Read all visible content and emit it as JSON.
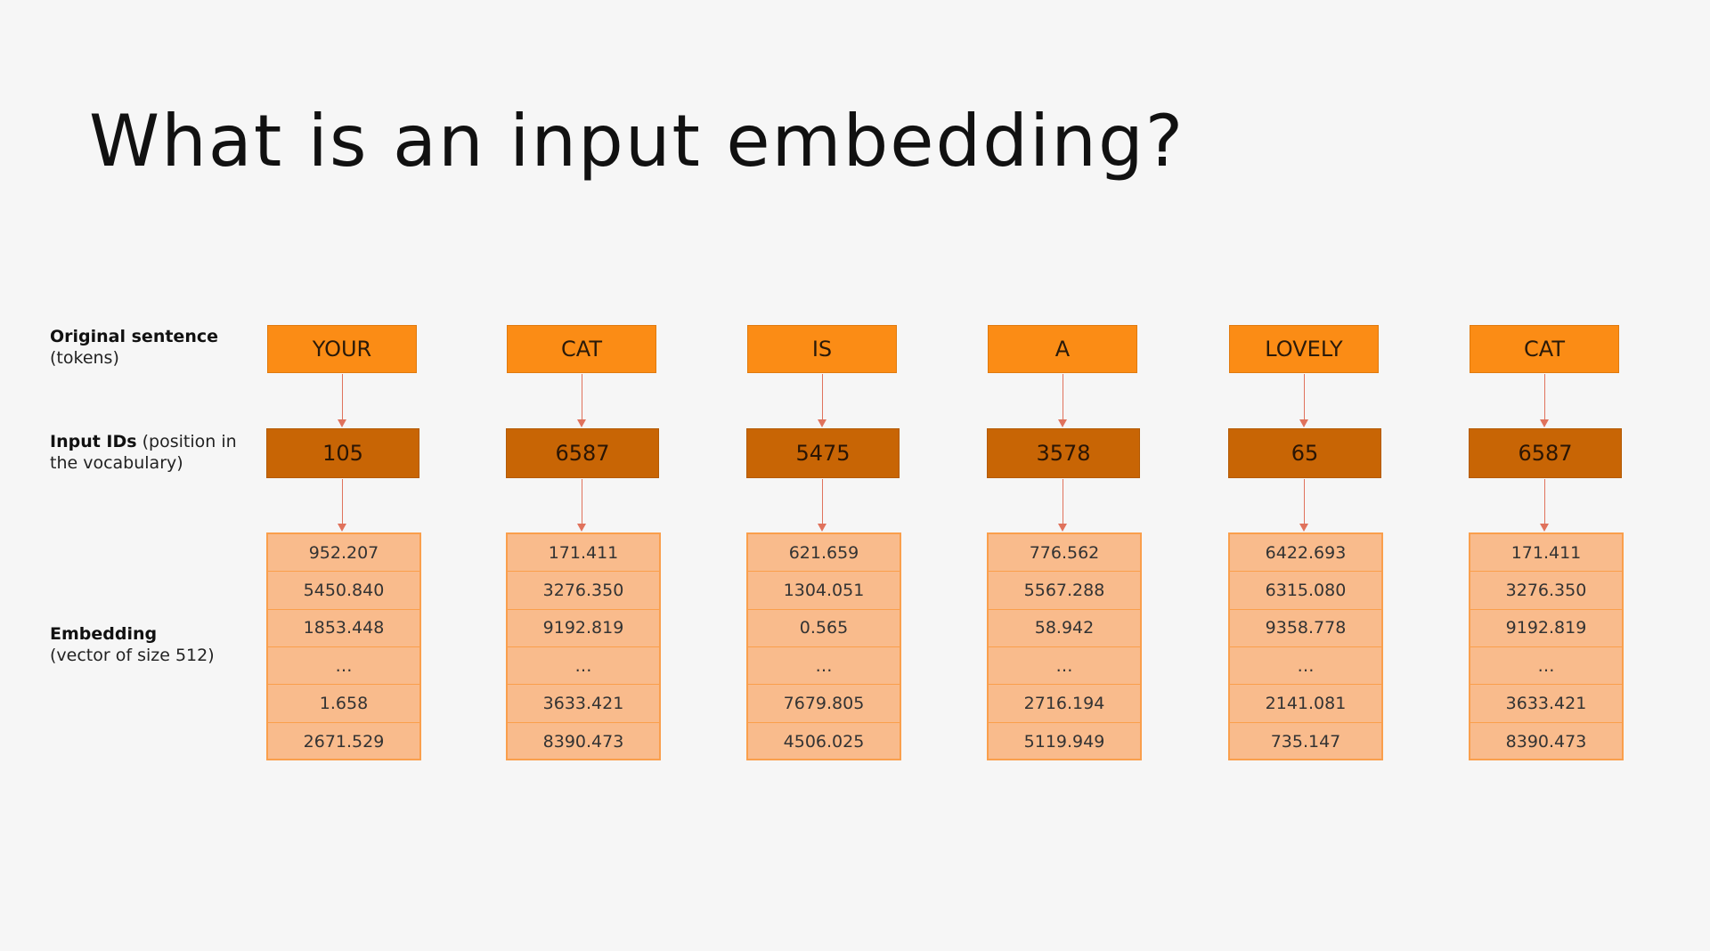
{
  "title": "What is an input embedding?",
  "labels": {
    "tokens": {
      "bold": "Original sentence",
      "sub": "(tokens)"
    },
    "ids": {
      "bold": "Input IDs",
      "sub": " (position in\nthe vocabulary)"
    },
    "embedding": {
      "bold": "Embedding",
      "sub": "(vector of size 512)"
    }
  },
  "colors": {
    "token_fill": "#fb8c15",
    "id_fill": "#c86505",
    "embedding_fill": "#f9bb8c",
    "embedding_border": "#fa9f4c",
    "arrow": "#e0725c"
  },
  "columns": [
    {
      "token": "YOUR",
      "id": "105",
      "embedding": [
        "952.207",
        "5450.840",
        "1853.448",
        "…",
        "1.658",
        "2671.529"
      ]
    },
    {
      "token": "CAT",
      "id": "6587",
      "embedding": [
        "171.411",
        "3276.350",
        "9192.819",
        "…",
        "3633.421",
        "8390.473"
      ]
    },
    {
      "token": "IS",
      "id": "5475",
      "embedding": [
        "621.659",
        "1304.051",
        "0.565",
        "…",
        "7679.805",
        "4506.025"
      ]
    },
    {
      "token": "A",
      "id": "3578",
      "embedding": [
        "776.562",
        "5567.288",
        "58.942",
        "…",
        "2716.194",
        "5119.949"
      ]
    },
    {
      "token": "LOVELY",
      "id": "65",
      "embedding": [
        "6422.693",
        "6315.080",
        "9358.778",
        "…",
        "2141.081",
        "735.147"
      ]
    },
    {
      "token": "CAT",
      "id": "6587",
      "embedding": [
        "171.411",
        "3276.350",
        "9192.819",
        "…",
        "3633.421",
        "8390.473"
      ]
    }
  ]
}
